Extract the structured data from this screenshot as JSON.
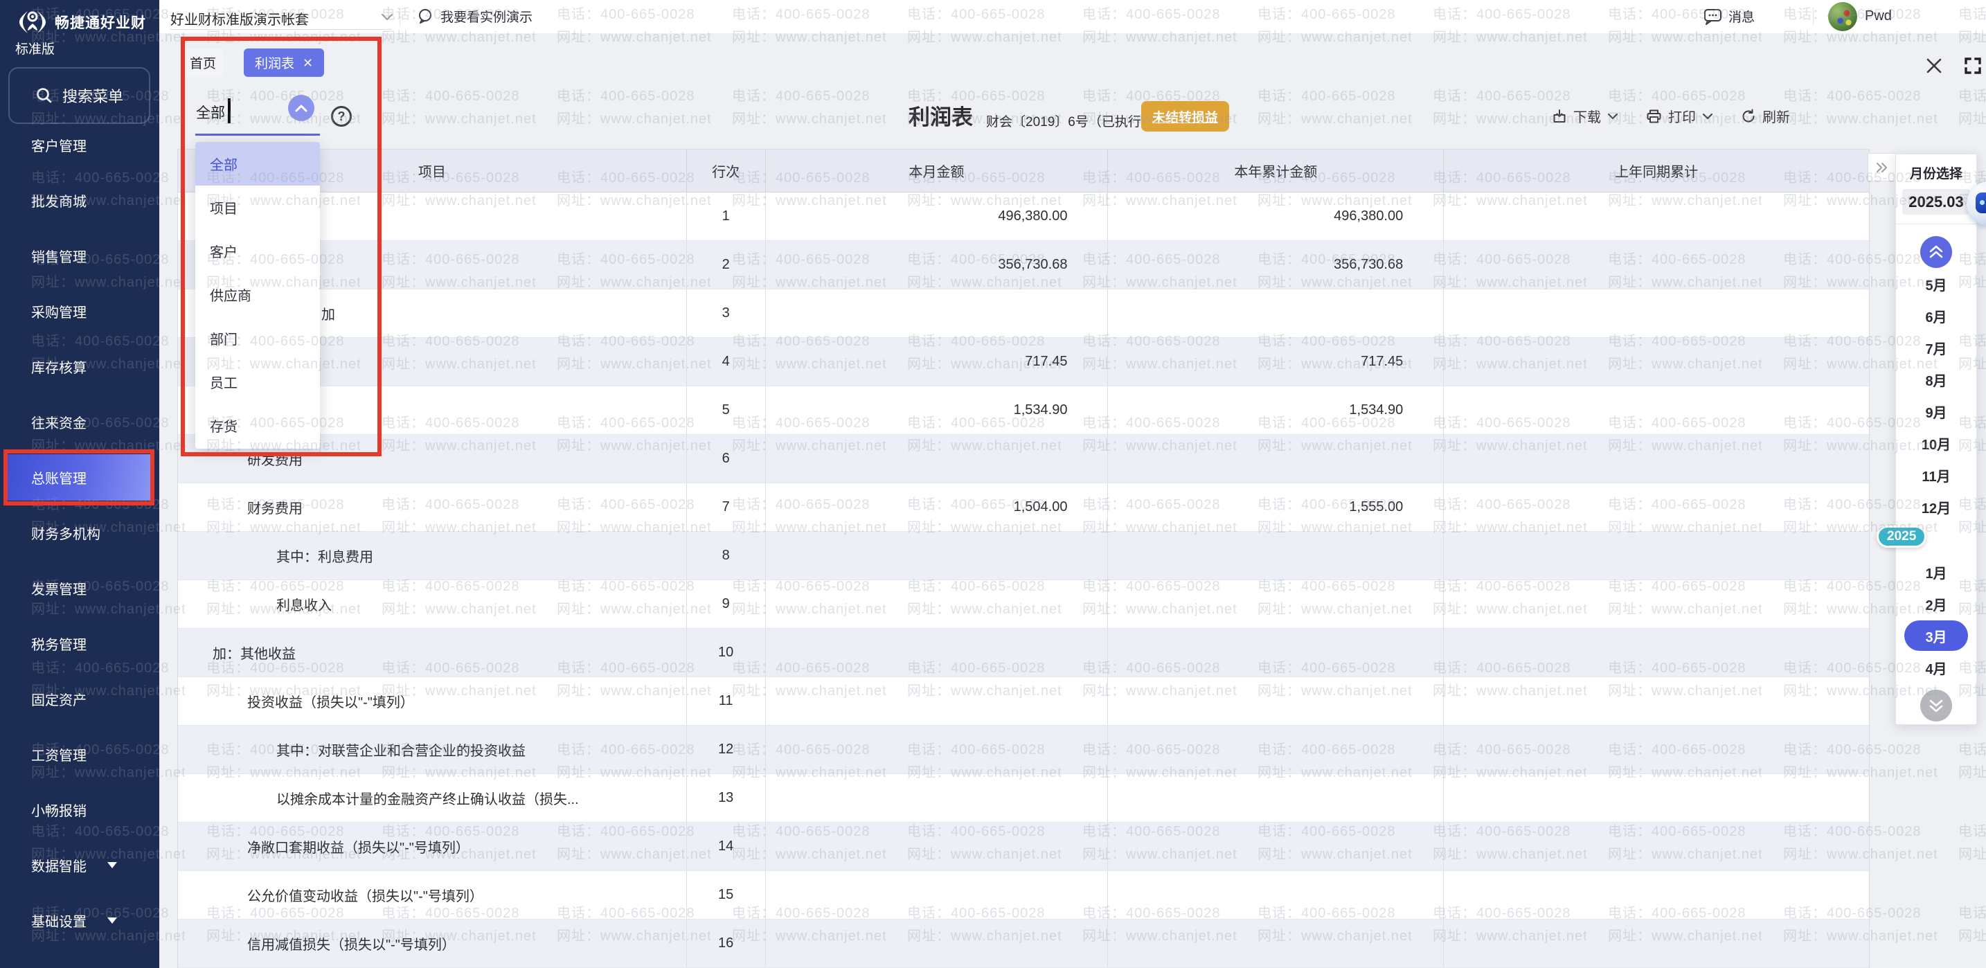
{
  "watermark": {
    "line1": "电话：400-665-0028",
    "line2": "网址：www.chanjet.net"
  },
  "sidebar": {
    "brand": "畅捷通好业财",
    "edition": "标准版",
    "search_label": "搜索菜单",
    "items": [
      {
        "label": "客户管理"
      },
      {
        "label": "批发商城"
      },
      {
        "label": "销售管理"
      },
      {
        "label": "采购管理"
      },
      {
        "label": "库存核算"
      },
      {
        "label": "往来资金"
      },
      {
        "label": "总账管理",
        "active": true
      },
      {
        "label": "财务多机构"
      },
      {
        "label": "发票管理"
      },
      {
        "label": "税务管理"
      },
      {
        "label": "固定资产"
      },
      {
        "label": "工资管理"
      },
      {
        "label": "小畅报销"
      },
      {
        "label": "数据智能",
        "expandable": true
      },
      {
        "label": "基础设置",
        "expandable": true
      }
    ]
  },
  "topbar": {
    "account": "好业财标准版演示帐套",
    "demo_link": "我要看实例演示",
    "messages": "消息",
    "user": "Pwd"
  },
  "tabs": {
    "home": "首页",
    "active_tab": "利润表"
  },
  "filter": {
    "value": "全部",
    "selected": "全部",
    "options": [
      "全部",
      "项目",
      "客户",
      "供应商",
      "部门",
      "员工",
      "存货"
    ]
  },
  "report": {
    "title": "利润表",
    "subtitle": "财会〔2019〕6号（已执行）",
    "badge": "未结转损益",
    "actions": {
      "download": "下载",
      "print": "打印",
      "refresh": "刷新"
    }
  },
  "table": {
    "columns": [
      "项目",
      "行次",
      "本月金额",
      "本年累计金额",
      "上年同期累计"
    ],
    "rows": [
      {
        "label": "",
        "level": 1,
        "line": "1",
        "current": "496,380.00",
        "ytd": "496,380.00",
        "prior": ""
      },
      {
        "label": "",
        "level": 1,
        "line": "2",
        "current": "356,730.68",
        "ytd": "356,730.68",
        "prior": ""
      },
      {
        "label": "加",
        "level": "p",
        "line": "3",
        "current": "",
        "ytd": "",
        "prior": ""
      },
      {
        "label": "",
        "level": 1,
        "line": "4",
        "current": "717.45",
        "ytd": "717.45",
        "prior": ""
      },
      {
        "label": "",
        "level": 1,
        "line": "5",
        "current": "1,534.90",
        "ytd": "1,534.90",
        "prior": ""
      },
      {
        "label": "研发费用",
        "level": 1,
        "line": "6",
        "current": "",
        "ytd": "",
        "prior": ""
      },
      {
        "label": "财务费用",
        "level": 1,
        "line": "7",
        "current": "1,504.00",
        "ytd": "1,555.00",
        "prior": ""
      },
      {
        "label": "其中：利息费用",
        "level": 2,
        "line": "8",
        "current": "",
        "ytd": "",
        "prior": ""
      },
      {
        "label": "利息收入",
        "level": 2,
        "line": "9",
        "current": "",
        "ytd": "",
        "prior": ""
      },
      {
        "label": "加：其他收益",
        "level": 0,
        "line": "10",
        "current": "",
        "ytd": "",
        "prior": ""
      },
      {
        "label": "投资收益（损失以\"-\"填列）",
        "level": 1,
        "line": "11",
        "current": "",
        "ytd": "",
        "prior": ""
      },
      {
        "label": "其中：对联营企业和合营企业的投资收益",
        "level": 2,
        "line": "12",
        "current": "",
        "ytd": "",
        "prior": ""
      },
      {
        "label": "以摊余成本计量的金融资产终止确认收益（损失...",
        "level": 2,
        "line": "13",
        "current": "",
        "ytd": "",
        "prior": ""
      },
      {
        "label": "净敞口套期收益（损失以\"-\"号填列）",
        "level": 1,
        "line": "14",
        "current": "",
        "ytd": "",
        "prior": ""
      },
      {
        "label": "公允价值变动收益（损失以\"-\"号填列）",
        "level": 1,
        "line": "15",
        "current": "",
        "ytd": "",
        "prior": ""
      },
      {
        "label": "信用减值损失（损失以\"-\"号填列）",
        "level": 1,
        "line": "16",
        "current": "",
        "ytd": "",
        "prior": ""
      }
    ]
  },
  "month_panel": {
    "title": "月份选择",
    "period": "2025.03",
    "year_badge": "2025",
    "months_upper": [
      "5月",
      "6月",
      "7月",
      "8月",
      "9月",
      "10月",
      "11月",
      "12月"
    ],
    "months_lower": [
      "1月",
      "2月",
      "3月",
      "4月"
    ],
    "selected": "3月"
  },
  "colors": {
    "accent_indigo": "#6673e6",
    "badge_orange": "#dfa436",
    "year_badge_teal": "#3ab3c9",
    "annotation_red": "#e6392b",
    "sidebar_navy": "#1d2c52"
  }
}
